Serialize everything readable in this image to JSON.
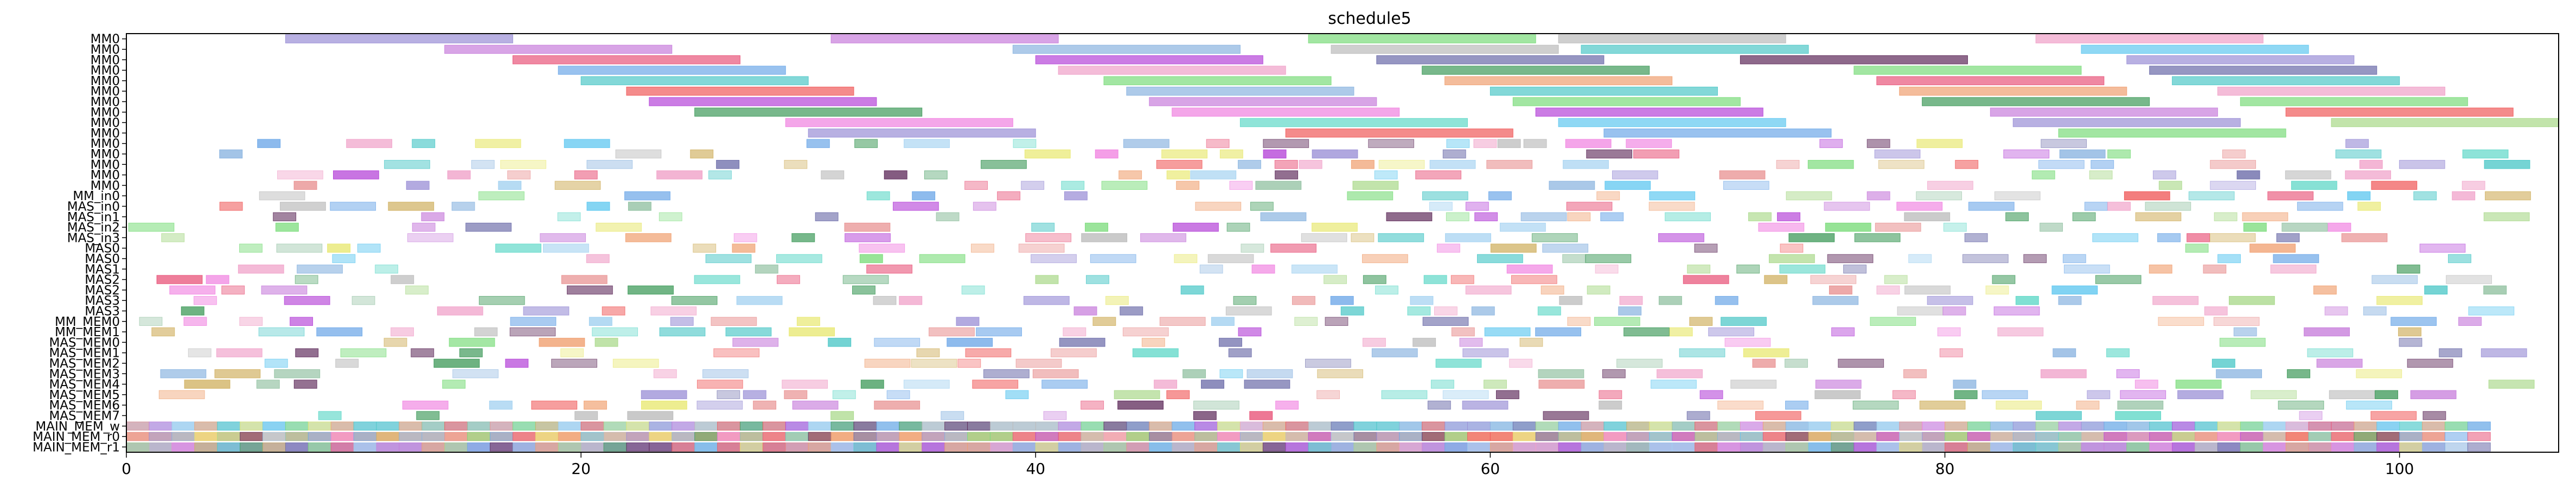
{
  "chart_data": {
    "type": "gantt",
    "title": "schedule5",
    "xlabel": "",
    "ylabel": "",
    "xlim": [
      0,
      107
    ],
    "x_ticks": [
      0,
      20,
      40,
      60,
      80,
      100
    ],
    "grid": false,
    "legend": "none",
    "rows": [
      "MM0",
      "MM0",
      "MM0",
      "MM0",
      "MM0",
      "MM0",
      "MM0",
      "MM0",
      "MM0",
      "MM0",
      "MM0",
      "MM0",
      "MM0",
      "MM0",
      "MM0",
      "MM_in0",
      "MAS_in0",
      "MAS_in1",
      "MAS_in2",
      "MAS_in3",
      "MAS0",
      "MAS0",
      "MAS1",
      "MAS2",
      "MAS2",
      "MAS3",
      "MAS3",
      "MM_MEM0",
      "MM_MEM1",
      "MAS_MEM0",
      "MAS_MEM1",
      "MAS_MEM2",
      "MAS_MEM3",
      "MAS_MEM4",
      "MAS_MEM5",
      "MAS_MEM6",
      "MAS_MEM7",
      "MAIN_MEM_w",
      "MAIN_MEM_r0",
      "MAIN_MEM_r1"
    ],
    "palette": [
      "#9a8fd6",
      "#c77ddb",
      "#e8557a",
      "#6ea8e8",
      "#4ec8c8",
      "#f05a5a",
      "#b545d8",
      "#3f9a5a",
      "#f080e0",
      "#60d8c8",
      "#7bdc7b",
      "#6a6aa8",
      "#bbbbbb",
      "#5e2a5a",
      "#60c8f0",
      "#f0a0c8",
      "#a8d888",
      "#8ab4e0",
      "#f0a070",
      "#d0b060",
      "#a0d0f0",
      "#e8e870",
      "#90c0a0",
      "#e89090"
    ],
    "tasks": [
      {
        "row": 0,
        "start": 7,
        "end": 17,
        "c": 0
      },
      {
        "row": 0,
        "start": 31,
        "end": 41,
        "c": 1
      },
      {
        "row": 0,
        "start": 52,
        "end": 62,
        "c": 10
      },
      {
        "row": 0,
        "start": 63,
        "end": 73,
        "c": 12
      },
      {
        "row": 0,
        "start": 84,
        "end": 94,
        "c": 15
      },
      {
        "row": 1,
        "start": 14,
        "end": 24,
        "c": 1
      },
      {
        "row": 1,
        "start": 39,
        "end": 49,
        "c": 17
      },
      {
        "row": 1,
        "start": 53,
        "end": 63,
        "c": 12
      },
      {
        "row": 1,
        "start": 64,
        "end": 74,
        "c": 4
      },
      {
        "row": 1,
        "start": 86,
        "end": 96,
        "c": 14
      },
      {
        "row": 2,
        "start": 17,
        "end": 27,
        "c": 2
      },
      {
        "row": 2,
        "start": 40,
        "end": 50,
        "c": 6
      },
      {
        "row": 2,
        "start": 55,
        "end": 65,
        "c": 11
      },
      {
        "row": 2,
        "start": 71,
        "end": 81,
        "c": 13
      },
      {
        "row": 2,
        "start": 88,
        "end": 98,
        "c": 0
      },
      {
        "row": 3,
        "start": 19,
        "end": 29,
        "c": 3
      },
      {
        "row": 3,
        "start": 41,
        "end": 51,
        "c": 15
      },
      {
        "row": 3,
        "start": 57,
        "end": 67,
        "c": 7
      },
      {
        "row": 3,
        "start": 76,
        "end": 86,
        "c": 10
      },
      {
        "row": 3,
        "start": 89,
        "end": 99,
        "c": 11
      },
      {
        "row": 4,
        "start": 20,
        "end": 30,
        "c": 4
      },
      {
        "row": 4,
        "start": 43,
        "end": 53,
        "c": 10
      },
      {
        "row": 4,
        "start": 58,
        "end": 68,
        "c": 18
      },
      {
        "row": 4,
        "start": 77,
        "end": 87,
        "c": 2
      },
      {
        "row": 4,
        "start": 90,
        "end": 100,
        "c": 4
      },
      {
        "row": 5,
        "start": 22,
        "end": 32,
        "c": 5
      },
      {
        "row": 5,
        "start": 44,
        "end": 54,
        "c": 17
      },
      {
        "row": 5,
        "start": 60,
        "end": 70,
        "c": 4
      },
      {
        "row": 5,
        "start": 78,
        "end": 88,
        "c": 18
      },
      {
        "row": 5,
        "start": 92,
        "end": 102,
        "c": 15
      },
      {
        "row": 6,
        "start": 23,
        "end": 33,
        "c": 6
      },
      {
        "row": 6,
        "start": 45,
        "end": 55,
        "c": 1
      },
      {
        "row": 6,
        "start": 61,
        "end": 71,
        "c": 10
      },
      {
        "row": 6,
        "start": 79,
        "end": 89,
        "c": 7
      },
      {
        "row": 6,
        "start": 93,
        "end": 103,
        "c": 10
      },
      {
        "row": 7,
        "start": 25,
        "end": 35,
        "c": 7
      },
      {
        "row": 7,
        "start": 46,
        "end": 56,
        "c": 8
      },
      {
        "row": 7,
        "start": 62,
        "end": 72,
        "c": 6
      },
      {
        "row": 7,
        "start": 82,
        "end": 92,
        "c": 1
      },
      {
        "row": 7,
        "start": 95,
        "end": 105,
        "c": 5
      },
      {
        "row": 8,
        "start": 29,
        "end": 39,
        "c": 8
      },
      {
        "row": 8,
        "start": 49,
        "end": 59,
        "c": 9
      },
      {
        "row": 8,
        "start": 63,
        "end": 73,
        "c": 14
      },
      {
        "row": 8,
        "start": 83,
        "end": 93,
        "c": 0
      },
      {
        "row": 8,
        "start": 97,
        "end": 107,
        "c": 16
      },
      {
        "row": 9,
        "start": 30,
        "end": 40,
        "c": 0
      },
      {
        "row": 9,
        "start": 51,
        "end": 61,
        "c": 5
      },
      {
        "row": 9,
        "start": 65,
        "end": 75,
        "c": 3
      },
      {
        "row": 9,
        "start": 85,
        "end": 95,
        "c": 10
      },
      {
        "row": 37,
        "start": 0,
        "end": 104,
        "c": 20
      },
      {
        "row": 38,
        "start": 0,
        "end": 102,
        "c": 18
      },
      {
        "row": 39,
        "start": 0,
        "end": 102,
        "c": 0
      }
    ],
    "random_fill": {
      "rows": [
        10,
        11,
        12,
        13,
        14,
        15,
        16,
        17,
        18,
        19,
        20,
        21,
        22,
        23,
        24,
        25,
        26,
        27,
        28,
        29,
        30,
        31,
        32,
        33,
        34,
        35,
        36
      ],
      "seed": 5,
      "xmin": 0,
      "xmax": 104
    }
  }
}
